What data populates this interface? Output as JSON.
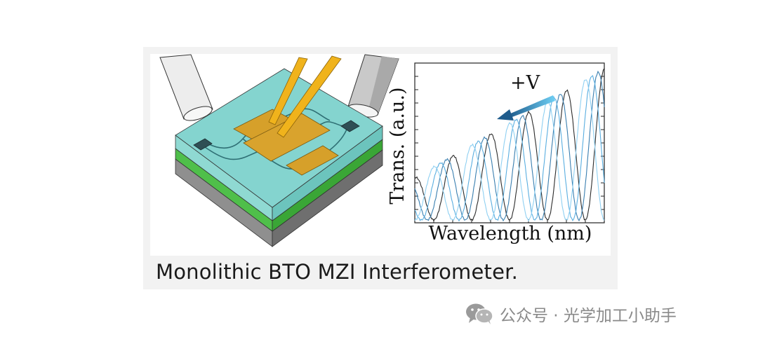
{
  "figure": {
    "caption": "Monolithic BTO MZI Interferometer.",
    "voltage_label": "+V"
  },
  "chart_data": {
    "type": "line",
    "xlabel": "Wavelength (nm)",
    "ylabel": "Trans. (a.u.)",
    "x_tick_labels": [],
    "y_tick_labels": [],
    "grid": false,
    "annotations": [
      "+V"
    ],
    "colors": [
      "#2b2b2b",
      "#3a7fb0",
      "#5aaee0",
      "#8fd0f2"
    ]
  },
  "watermark": {
    "text": "公众号 · 光学加工小助手",
    "icon": "wechat-icon"
  }
}
